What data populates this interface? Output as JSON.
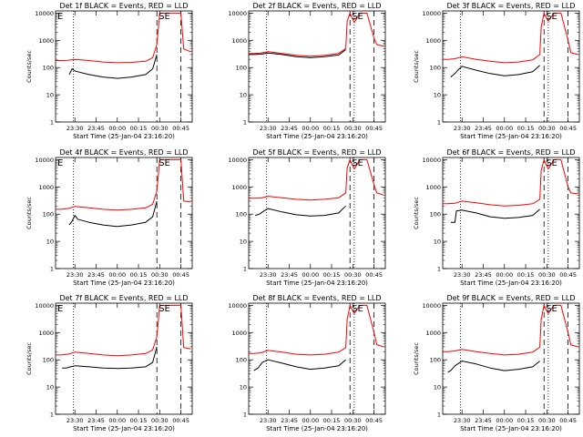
{
  "colors": {
    "events": "#000000",
    "lld": "#ff0000",
    "axis": "#000000",
    "background": "#ffffff"
  },
  "chart_data": [
    {
      "panel": 1,
      "type": "line",
      "title": "Det 1f BLACK = Events, RED = LLD",
      "corner_labels": [
        "E",
        "SE"
      ],
      "ylabel": "Counts/sec",
      "xlabel": "Start Time (25-Jan-04 23:16:20)",
      "xticks": [
        "23:30",
        "23:45",
        "00:00",
        "00:15",
        "00:30",
        "00:45"
      ],
      "yticks": [
        "1",
        "10",
        "100",
        "1000",
        "10000"
      ],
      "yscale": "log",
      "ylim": [
        1,
        12000
      ],
      "xlim": [
        "23:16:20",
        "00:53:00"
      ],
      "markers": {
        "dotted": [
          "23:29"
        ],
        "dashed": [
          "00:28",
          "00:45"
        ]
      },
      "series": [
        {
          "color": "red",
          "x": [
            "23:16",
            "23:20",
            "23:25",
            "23:30",
            "23:40",
            "23:50",
            "00:00",
            "00:10",
            "00:20",
            "00:25",
            "00:28",
            "00:30",
            "00:45",
            "00:47",
            "00:52"
          ],
          "values": [
            180,
            180,
            185,
            200,
            180,
            160,
            150,
            155,
            170,
            230,
            700,
            10000,
            10000,
            480,
            380
          ]
        },
        {
          "color": "black",
          "x": [
            "23:26",
            "23:28",
            "23:30",
            "23:32",
            "23:40",
            "23:50",
            "00:00",
            "00:10",
            "00:20",
            "00:25",
            "00:28"
          ],
          "values": [
            55,
            90,
            75,
            70,
            55,
            45,
            40,
            45,
            55,
            90,
            300
          ]
        }
      ]
    },
    {
      "panel": 2,
      "type": "line",
      "title": "Det 2f BLACK = Events, RED = LLD",
      "corner_labels": [
        "SE"
      ],
      "ylabel": "",
      "xlabel": "Start Time (25-Jan-04 23:16:20)",
      "xticks": [
        "23:30",
        "23:45",
        "00:00",
        "00:15",
        "00:30",
        "00:45"
      ],
      "yticks": [
        "1",
        "10",
        "100",
        "1000",
        "10000"
      ],
      "yscale": "log",
      "ylim": [
        1,
        12000
      ],
      "xlim": [
        "23:16:20",
        "00:53:00"
      ],
      "markers": {
        "dotted": [
          "23:29",
          "00:31"
        ],
        "dashed": [
          "00:28",
          "00:45"
        ]
      },
      "series": [
        {
          "color": "red",
          "x": [
            "23:16",
            "23:20",
            "23:25",
            "23:30",
            "23:40",
            "23:50",
            "00:00",
            "00:10",
            "00:20",
            "00:25",
            "00:26",
            "00:28",
            "00:31",
            "00:35",
            "00:40",
            "00:45",
            "00:47",
            "00:52"
          ],
          "values": [
            330,
            330,
            340,
            380,
            330,
            280,
            260,
            280,
            330,
            500,
            5000,
            10000,
            4500,
            10000,
            10000,
            1200,
            700,
            600
          ]
        },
        {
          "color": "black",
          "x": [
            "23:16",
            "23:20",
            "23:25",
            "23:30",
            "23:40",
            "23:50",
            "00:00",
            "00:10",
            "00:20",
            "00:25"
          ],
          "values": [
            300,
            300,
            310,
            340,
            300,
            250,
            230,
            250,
            290,
            450
          ]
        }
      ]
    },
    {
      "panel": 3,
      "type": "line",
      "title": "Det 3f BLACK = Events, RED = LLD",
      "corner_labels": [
        "SE"
      ],
      "ylabel": "Counts/sec",
      "xlabel": "Start Time (25-Jan-04 23:16:20)",
      "xticks": [
        "23:30",
        "23:45",
        "00:00",
        "00:15",
        "00:30",
        "00:45"
      ],
      "yticks": [
        "1",
        "10",
        "100",
        "1000",
        "10000"
      ],
      "yscale": "log",
      "ylim": [
        1,
        12000
      ],
      "xlim": [
        "23:16:20",
        "00:53:00"
      ],
      "markers": {
        "dotted": [
          "23:29",
          "00:31"
        ],
        "dashed": [
          "00:28",
          "00:45"
        ]
      },
      "series": [
        {
          "color": "red",
          "x": [
            "23:16",
            "23:20",
            "23:25",
            "23:30",
            "23:40",
            "23:50",
            "00:00",
            "00:10",
            "00:20",
            "00:25",
            "00:26",
            "00:28",
            "00:31",
            "00:35",
            "00:40",
            "00:45",
            "00:47",
            "00:52"
          ],
          "values": [
            200,
            200,
            210,
            250,
            200,
            170,
            150,
            160,
            190,
            300,
            3000,
            10000,
            5000,
            10000,
            10000,
            1000,
            350,
            300
          ]
        },
        {
          "color": "black",
          "x": [
            "23:22",
            "23:25",
            "23:27",
            "23:30",
            "23:40",
            "23:50",
            "00:00",
            "00:10",
            "00:20",
            "00:25"
          ],
          "values": [
            45,
            60,
            80,
            110,
            80,
            60,
            50,
            55,
            70,
            120
          ]
        }
      ]
    },
    {
      "panel": 4,
      "type": "line",
      "title": "Det 4f BLACK = Events, RED = LLD",
      "corner_labels": [
        "E",
        "SE"
      ],
      "ylabel": "Counts/sec",
      "xlabel": "Start Time (25-Jan-04 23:16:20)",
      "xticks": [
        "23:30",
        "23:45",
        "00:00",
        "00:15",
        "00:30",
        "00:45"
      ],
      "yticks": [
        "1",
        "10",
        "100",
        "1000",
        "10000"
      ],
      "yscale": "log",
      "ylim": [
        1,
        12000
      ],
      "xlim": [
        "23:16:20",
        "00:53:00"
      ],
      "markers": {
        "dotted": [
          "23:29"
        ],
        "dashed": [
          "00:28",
          "00:45"
        ]
      },
      "series": [
        {
          "color": "red",
          "x": [
            "23:16",
            "23:20",
            "23:25",
            "23:30",
            "23:40",
            "23:50",
            "00:00",
            "00:10",
            "00:20",
            "00:25",
            "00:28",
            "00:30",
            "00:45",
            "00:47",
            "00:52"
          ],
          "values": [
            150,
            150,
            160,
            190,
            170,
            150,
            140,
            150,
            170,
            230,
            700,
            10000,
            10000,
            300,
            280
          ]
        },
        {
          "color": "black",
          "x": [
            "23:26",
            "23:28",
            "23:30",
            "23:32",
            "23:40",
            "23:50",
            "00:00",
            "00:10",
            "00:20",
            "00:25",
            "00:28"
          ],
          "values": [
            40,
            55,
            90,
            65,
            50,
            40,
            35,
            40,
            50,
            80,
            300
          ]
        }
      ]
    },
    {
      "panel": 5,
      "type": "line",
      "title": "Det 5f BLACK = Events, RED = LLD",
      "corner_labels": [
        "SE"
      ],
      "ylabel": "",
      "xlabel": "Start Time (25-Jan-04 23:16:20)",
      "xticks": [
        "23:30",
        "23:45",
        "00:00",
        "00:15",
        "00:30",
        "00:45"
      ],
      "yticks": [
        "1",
        "10",
        "100",
        "1000",
        "10000"
      ],
      "yscale": "log",
      "ylim": [
        1,
        12000
      ],
      "xlim": [
        "23:16:20",
        "00:53:00"
      ],
      "markers": {
        "dotted": [
          "23:29",
          "00:31"
        ],
        "dashed": [
          "00:28",
          "00:45"
        ]
      },
      "series": [
        {
          "color": "red",
          "x": [
            "23:16",
            "23:20",
            "23:25",
            "23:30",
            "23:40",
            "23:50",
            "00:00",
            "00:10",
            "00:20",
            "00:25",
            "00:26",
            "00:28",
            "00:31",
            "00:35",
            "00:40",
            "00:45",
            "00:47",
            "00:52"
          ],
          "values": [
            380,
            380,
            390,
            450,
            400,
            350,
            330,
            350,
            400,
            600,
            5000,
            10000,
            4500,
            10000,
            10000,
            1200,
            600,
            500
          ]
        },
        {
          "color": "black",
          "x": [
            "23:21",
            "23:24",
            "23:27",
            "23:30",
            "23:40",
            "23:50",
            "00:00",
            "00:10",
            "00:20",
            "00:25"
          ],
          "values": [
            90,
            100,
            130,
            160,
            120,
            95,
            85,
            90,
            110,
            200
          ]
        }
      ]
    },
    {
      "panel": 6,
      "type": "line",
      "title": "Det 6f BLACK = Events, RED = LLD",
      "corner_labels": [
        "SE"
      ],
      "ylabel": "Counts/sec",
      "xlabel": "Start Time (25-Jan-04 23:16:20)",
      "xticks": [
        "23:30",
        "23:45",
        "00:00",
        "00:15",
        "00:30",
        "00:45"
      ],
      "yticks": [
        "1",
        "10",
        "100",
        "1000",
        "10000"
      ],
      "yscale": "log",
      "ylim": [
        1,
        12000
      ],
      "xlim": [
        "23:16:20",
        "00:53:00"
      ],
      "markers": {
        "dotted": [
          "23:29",
          "00:31"
        ],
        "dashed": [
          "00:28",
          "00:45"
        ]
      },
      "series": [
        {
          "color": "red",
          "x": [
            "23:16",
            "23:20",
            "23:25",
            "23:30",
            "23:40",
            "23:50",
            "00:00",
            "00:10",
            "00:20",
            "00:25",
            "00:26",
            "00:28",
            "00:31",
            "00:35",
            "00:40",
            "00:45",
            "00:47",
            "00:52"
          ],
          "values": [
            240,
            240,
            250,
            300,
            260,
            220,
            200,
            210,
            240,
            350,
            4000,
            10000,
            4500,
            10000,
            10000,
            1000,
            600,
            550
          ]
        },
        {
          "color": "black",
          "x": [
            "23:22",
            "23:25",
            "23:26",
            "23:30",
            "23:40",
            "23:50",
            "00:00",
            "00:10",
            "00:20",
            "00:25"
          ],
          "values": [
            50,
            50,
            130,
            140,
            110,
            80,
            70,
            75,
            90,
            150
          ]
        }
      ]
    },
    {
      "panel": 7,
      "type": "line",
      "title": "Det 7f BLACK = Events, RED = LLD",
      "corner_labels": [
        "E",
        "SE"
      ],
      "ylabel": "Counts/sec",
      "xlabel": "Start Time (25-Jan-04 23:16:20)",
      "xticks": [
        "23:30",
        "23:45",
        "00:00",
        "00:15",
        "00:30",
        "00:45"
      ],
      "yticks": [
        "1",
        "10",
        "100",
        "1000",
        "10000"
      ],
      "yscale": "log",
      "ylim": [
        1,
        12000
      ],
      "xlim": [
        "23:16:20",
        "00:53:00"
      ],
      "markers": {
        "dotted": [
          "23:29"
        ],
        "dashed": [
          "00:28",
          "00:45"
        ]
      },
      "series": [
        {
          "color": "red",
          "x": [
            "23:16",
            "23:20",
            "23:25",
            "23:30",
            "23:40",
            "23:50",
            "00:00",
            "00:10",
            "00:20",
            "00:25",
            "00:28",
            "00:30",
            "00:45",
            "00:47",
            "00:52"
          ],
          "values": [
            150,
            150,
            160,
            190,
            170,
            150,
            140,
            150,
            170,
            230,
            700,
            10000,
            10000,
            280,
            250
          ]
        },
        {
          "color": "black",
          "x": [
            "23:21",
            "23:24",
            "23:27",
            "23:30",
            "23:40",
            "23:50",
            "00:00",
            "00:10",
            "00:20",
            "00:25",
            "00:28"
          ],
          "values": [
            50,
            50,
            55,
            60,
            55,
            50,
            48,
            50,
            55,
            80,
            300
          ]
        }
      ]
    },
    {
      "panel": 8,
      "type": "line",
      "title": "Det 8f BLACK = Events, RED = LLD",
      "corner_labels": [
        "SE"
      ],
      "ylabel": "",
      "xlabel": "Start Time (25-Jan-04 23:16:20)",
      "xticks": [
        "23:30",
        "23:45",
        "00:00",
        "00:15",
        "00:30",
        "00:45"
      ],
      "yticks": [
        "1",
        "10",
        "100",
        "1000",
        "10000"
      ],
      "yscale": "log",
      "ylim": [
        1,
        12000
      ],
      "xlim": [
        "23:16:20",
        "00:53:00"
      ],
      "markers": {
        "dotted": [
          "23:29",
          "00:31"
        ],
        "dashed": [
          "00:28",
          "00:45"
        ]
      },
      "series": [
        {
          "color": "red",
          "x": [
            "23:16",
            "23:20",
            "23:25",
            "23:30",
            "23:40",
            "23:50",
            "00:00",
            "00:10",
            "00:20",
            "00:25",
            "00:26",
            "00:28",
            "00:31",
            "00:35",
            "00:40",
            "00:45",
            "00:47",
            "00:52"
          ],
          "values": [
            170,
            170,
            180,
            220,
            190,
            160,
            150,
            160,
            190,
            280,
            3000,
            10000,
            5000,
            10000,
            10000,
            1000,
            350,
            300
          ]
        },
        {
          "color": "black",
          "x": [
            "23:20",
            "23:23",
            "23:26",
            "23:30",
            "23:40",
            "23:50",
            "00:00",
            "00:10",
            "00:20",
            "00:25"
          ],
          "values": [
            40,
            50,
            80,
            100,
            75,
            55,
            45,
            50,
            60,
            100
          ]
        }
      ]
    },
    {
      "panel": 9,
      "type": "line",
      "title": "Det 9f BLACK = Events, RED = LLD",
      "corner_labels": [
        "SE"
      ],
      "ylabel": "Counts/sec",
      "xlabel": "Start Time (25-Jan-04 23:16:20)",
      "xticks": [
        "23:30",
        "23:45",
        "00:00",
        "00:15",
        "00:30",
        "00:45"
      ],
      "yticks": [
        "1",
        "10",
        "100",
        "1000",
        "10000"
      ],
      "yscale": "log",
      "ylim": [
        1,
        12000
      ],
      "xlim": [
        "23:16:20",
        "00:53:00"
      ],
      "markers": {
        "dotted": [
          "23:29",
          "00:31"
        ],
        "dashed": [
          "00:28",
          "00:45"
        ]
      },
      "series": [
        {
          "color": "red",
          "x": [
            "23:16",
            "23:20",
            "23:25",
            "23:30",
            "23:40",
            "23:50",
            "00:00",
            "00:10",
            "00:20",
            "00:25",
            "00:26",
            "00:28",
            "00:31",
            "00:35",
            "00:40",
            "00:45",
            "00:47",
            "00:52"
          ],
          "values": [
            200,
            200,
            210,
            240,
            200,
            170,
            150,
            160,
            190,
            290,
            3000,
            10000,
            5000,
            10000,
            10000,
            1000,
            350,
            300
          ]
        },
        {
          "color": "black",
          "x": [
            "23:20",
            "23:22",
            "23:25",
            "23:30",
            "23:40",
            "23:50",
            "00:00",
            "00:10",
            "00:20",
            "00:25"
          ],
          "values": [
            35,
            40,
            60,
            90,
            70,
            50,
            40,
            45,
            55,
            90
          ]
        }
      ]
    }
  ]
}
